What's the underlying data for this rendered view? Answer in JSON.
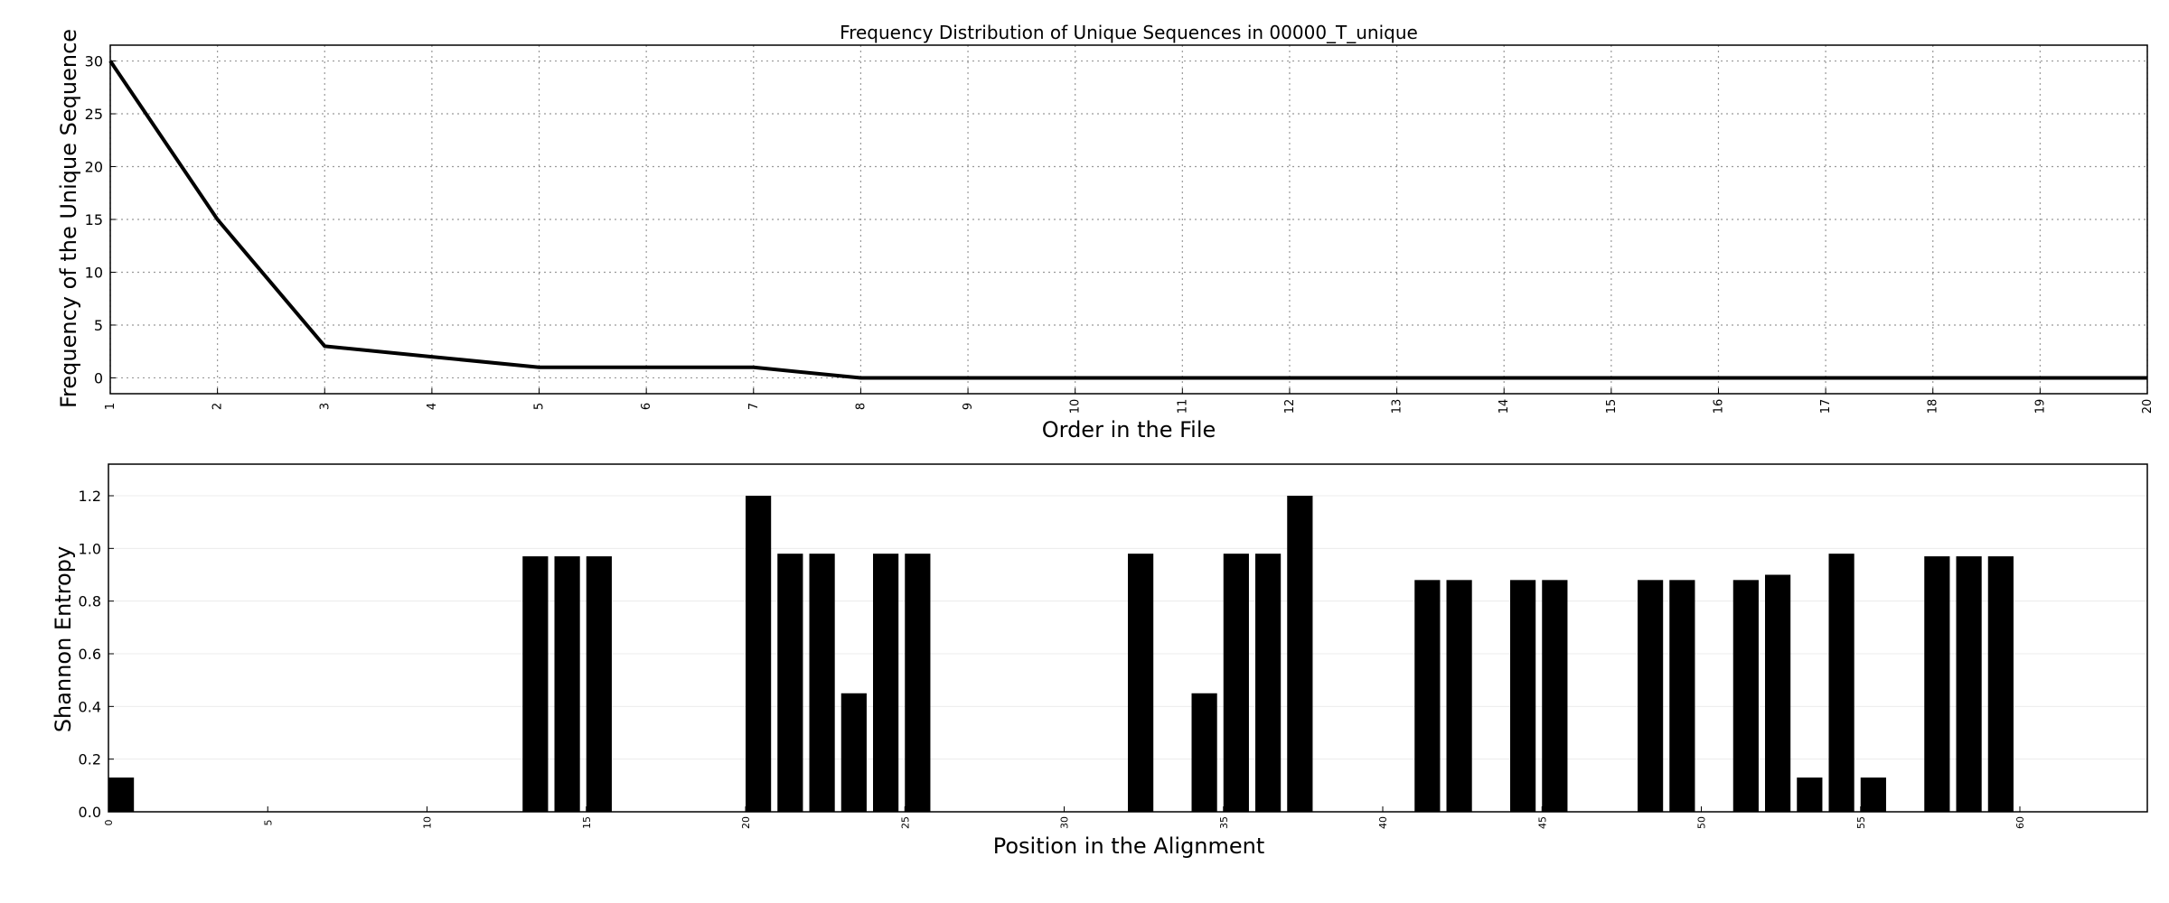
{
  "chart_data": [
    {
      "type": "line",
      "title": "Frequency Distribution of Unique Sequences in 00000_T_unique",
      "xlabel": "Order in the File",
      "ylabel": "Frequency of the Unique Sequence",
      "x": [
        1,
        2,
        3,
        4,
        5,
        6,
        7,
        8,
        9,
        10,
        11,
        12,
        13,
        14,
        15,
        16,
        17,
        18,
        19,
        20
      ],
      "series": [
        {
          "values": [
            30,
            15,
            3,
            2,
            1,
            1,
            1,
            0,
            0,
            0,
            0,
            0,
            0,
            0,
            0,
            0,
            0,
            0,
            0,
            0
          ]
        }
      ],
      "xlim": [
        1,
        20
      ],
      "ylim": [
        -1.5,
        31.5
      ],
      "xticks": [
        1,
        2,
        3,
        4,
        5,
        6,
        7,
        8,
        9,
        10,
        11,
        12,
        13,
        14,
        15,
        16,
        17,
        18,
        19,
        20
      ],
      "yticks": [
        0,
        5,
        10,
        15,
        20,
        25,
        30
      ],
      "grid": true,
      "line_color": "#000000"
    },
    {
      "type": "bar",
      "title": "",
      "xlabel": "Position in the Alignment",
      "ylabel": "Shannon Entropy",
      "positions": [
        0,
        1,
        2,
        3,
        4,
        5,
        6,
        7,
        8,
        9,
        10,
        11,
        12,
        13,
        14,
        15,
        16,
        17,
        18,
        19,
        20,
        21,
        22,
        23,
        24,
        25,
        26,
        27,
        28,
        29,
        30,
        31,
        32,
        33,
        34,
        35,
        36,
        37,
        38,
        39,
        40,
        41,
        42,
        43,
        44,
        45,
        46,
        47,
        48,
        49,
        50,
        51,
        52,
        53,
        54,
        55,
        56,
        57,
        58,
        59,
        60,
        61,
        62,
        63
      ],
      "values": [
        0.13,
        0,
        0,
        0,
        0,
        0,
        0,
        0,
        0,
        0,
        0,
        0,
        0,
        0.97,
        0.97,
        0.97,
        0,
        0,
        0,
        0,
        1.2,
        0.98,
        0.98,
        0.45,
        0.98,
        0.98,
        0,
        0,
        0,
        0,
        0,
        0,
        0.98,
        0,
        0.45,
        0.98,
        0.98,
        1.2,
        0,
        0,
        0,
        0.88,
        0.88,
        0,
        0.88,
        0.88,
        0,
        0,
        0.88,
        0.88,
        0,
        0.88,
        0.9,
        0.13,
        0.98,
        0.13,
        0,
        0.97,
        0.97,
        0.97,
        0,
        0,
        0,
        0
      ],
      "xlim": [
        0,
        64
      ],
      "ylim": [
        0,
        1.32
      ],
      "xticks": [
        0,
        5,
        10,
        15,
        20,
        25,
        30,
        35,
        40,
        45,
        50,
        55,
        60
      ],
      "yticks": [
        0.0,
        0.2,
        0.4,
        0.6,
        0.8,
        1.0,
        1.2
      ],
      "ytick_labels": [
        "0.0",
        "0.2",
        "0.4",
        "0.6",
        "0.8",
        "1.0",
        "1.2"
      ],
      "grid": "y-light",
      "bar_color": "#000000"
    }
  ]
}
